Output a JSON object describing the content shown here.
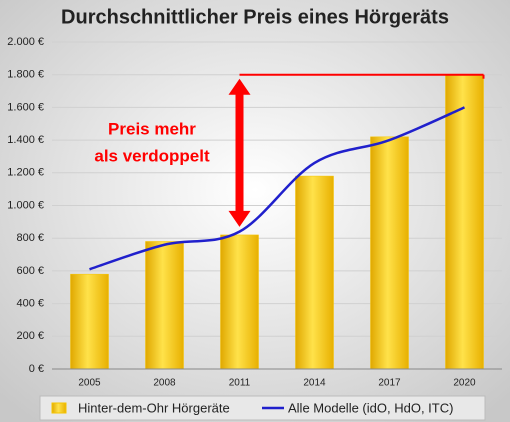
{
  "chart_data": {
    "type": "bar",
    "title": "Durchschnittlicher Preis eines Hörgeräts",
    "categories": [
      "2005",
      "2008",
      "2011",
      "2014",
      "2017",
      "2020"
    ],
    "series": [
      {
        "name": "Hinter-dem-Ohr Hörgeräte",
        "type": "bar",
        "color": "#f5c400",
        "values": [
          580,
          780,
          820,
          1180,
          1420,
          1800
        ]
      },
      {
        "name": "Alle Modelle (idO, HdO, ITC)",
        "type": "line",
        "color": "#2020cc",
        "values": [
          610,
          760,
          840,
          1260,
          1400,
          1600
        ]
      }
    ],
    "ylim": [
      0,
      2000
    ],
    "yticks": [
      {
        "value": 0,
        "label": "0 €"
      },
      {
        "value": 200,
        "label": "200 €"
      },
      {
        "value": 400,
        "label": "400 €"
      },
      {
        "value": 600,
        "label": "600 €"
      },
      {
        "value": 800,
        "label": "800 €"
      },
      {
        "value": 1000,
        "label": "1.000 €"
      },
      {
        "value": 1200,
        "label": "1.200 €"
      },
      {
        "value": 1400,
        "label": "1.400 €"
      },
      {
        "value": 1600,
        "label": "1.600 €"
      },
      {
        "value": 1800,
        "label": "1.800 €"
      },
      {
        "value": 2000,
        "label": "2.000 €"
      }
    ],
    "grid": true,
    "annotation": [
      "Preis mehr",
      "als verdoppelt"
    ],
    "annotation_color": "#ff0000"
  }
}
